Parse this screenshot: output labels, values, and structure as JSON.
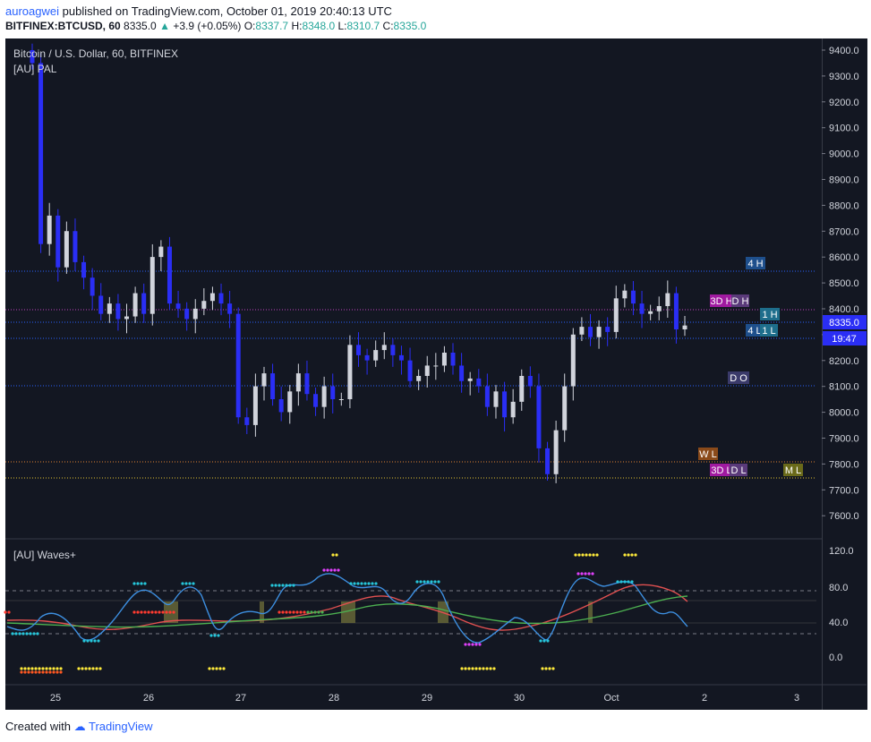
{
  "header": {
    "publisher": "auroagwei",
    "published_text": "published on TradingView.com, October 01, 2019 20:40:13 UTC",
    "symbol": "BITFINEX:BTCUSD, 60",
    "last": "8335.0",
    "change": "+3.9 (+0.05%)",
    "o_label": "O:",
    "o_value": "8337.7",
    "h_label": "H:",
    "h_value": "8348.0",
    "l_label": "L:",
    "l_value": "8310.7",
    "c_label": "C:",
    "c_value": "8335.0"
  },
  "main_pane": {
    "title": "Bitcoin / U.S. Dollar, 60, BITFINEX",
    "indicator": "[AU] PAL",
    "price_ticks": [
      "9400.0",
      "9300.0",
      "9200.0",
      "9100.0",
      "9000.0",
      "8900.0",
      "8800.0",
      "8700.0",
      "8600.0",
      "8500.0",
      "8400.0",
      "8300.0",
      "8200.0",
      "8100.0",
      "8000.0",
      "7900.0",
      "7800.0",
      "7700.0",
      "7600.0"
    ],
    "price_badge": "8335.0",
    "countdown": "19:47",
    "level_labels": {
      "h4": "4 H",
      "d3h": "3D H",
      "dh": "D H",
      "h1h": "1 H",
      "h4l": "4 L",
      "h1l": "1 L",
      "do": "D O",
      "wl": "W L",
      "d3l": "3D L",
      "dl": "D L",
      "ml": "M L"
    }
  },
  "waves_pane": {
    "title": "[AU] Waves+",
    "ticks": [
      "120.0",
      "80.0",
      "40.0",
      "0.0"
    ]
  },
  "time_axis": [
    "25",
    "26",
    "27",
    "28",
    "29",
    "30",
    "Oct",
    "2",
    "3"
  ],
  "colors": {
    "background": "#131722",
    "up_candle": "#d1d4dc",
    "down_candle": "#2a2ef5",
    "level_blue": "#2962ff",
    "level_magenta": "#c040c0",
    "level_orange": "#e08030",
    "wave_blue": "#3d8fe0",
    "wave_red": "#e05050",
    "wave_green": "#4caf50"
  },
  "chart_data": {
    "type": "candlestick",
    "title": "Bitcoin / U.S. Dollar, 60, BITFINEX",
    "x_labels": [
      "25",
      "26",
      "27",
      "28",
      "29",
      "30",
      "Oct",
      "2",
      "3"
    ],
    "ylim": [
      7550,
      9450
    ],
    "closes": [
      9350,
      8650,
      8760,
      8560,
      8700,
      8580,
      8520,
      8450,
      8380,
      8420,
      8360,
      8370,
      8460,
      8380,
      8600,
      8640,
      8420,
      8400,
      8360,
      8400,
      8430,
      8460,
      8420,
      8380,
      7980,
      7950,
      8100,
      8150,
      8050,
      8000,
      8080,
      8150,
      8070,
      8020,
      8100,
      8050,
      8050,
      8260,
      8220,
      8200,
      8240,
      8260,
      8220,
      8200,
      8120,
      8140,
      8180,
      8180,
      8230,
      8180,
      8120,
      8130,
      8100,
      8020,
      8080,
      7980,
      8040,
      8140,
      8100,
      7860,
      7760,
      7930,
      8100,
      8300,
      8330,
      8290,
      8330,
      8310,
      8440,
      8470,
      8420,
      8380,
      8390,
      8410,
      8460,
      8320,
      8335
    ]
  }
}
